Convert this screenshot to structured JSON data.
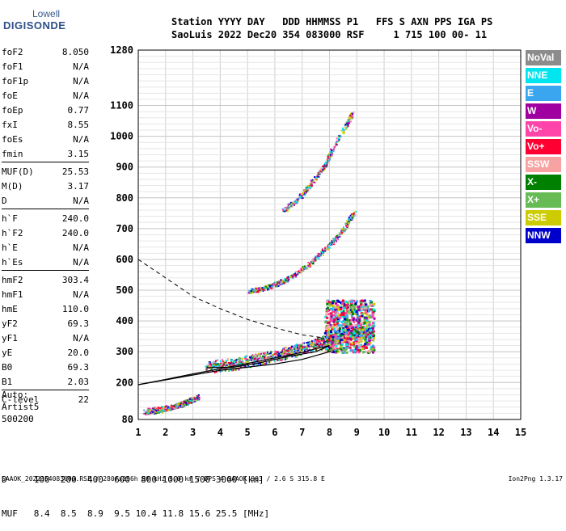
{
  "logo": {
    "line1": "Lowell",
    "line2": "DIGISONDE"
  },
  "header": {
    "row1": "Station YYYY DAY   DDD HHMMSS P1   FFS S AXN PPS IGA PS",
    "row2": "SaoLuis 2022 Dec20 354 083000 RSF     1 715 100 00- 11"
  },
  "params": [
    {
      "name": "foF2",
      "value": "8.050"
    },
    {
      "name": "foF1",
      "value": "N/A"
    },
    {
      "name": "foF1p",
      "value": "N/A"
    },
    {
      "name": "foE",
      "value": "N/A"
    },
    {
      "name": "foEp",
      "value": "0.77"
    },
    {
      "name": "fxI",
      "value": "8.55"
    },
    {
      "name": "foEs",
      "value": "N/A"
    },
    {
      "name": "fmin",
      "value": "3.15"
    },
    {
      "name": "MUF(D)",
      "value": "25.53"
    },
    {
      "name": "M(D)",
      "value": "3.17"
    },
    {
      "name": "D",
      "value": "N/A"
    },
    {
      "name": "h`F",
      "value": "240.0"
    },
    {
      "name": "h`F2",
      "value": "240.0"
    },
    {
      "name": "h`E",
      "value": "N/A"
    },
    {
      "name": "h`Es",
      "value": "N/A"
    },
    {
      "name": "hmF2",
      "value": "303.4"
    },
    {
      "name": "hmF1",
      "value": "N/A"
    },
    {
      "name": "hmE",
      "value": "110.0"
    },
    {
      "name": "yF2",
      "value": "69.3"
    },
    {
      "name": "yF1",
      "value": "N/A"
    },
    {
      "name": "yE",
      "value": "20.0"
    },
    {
      "name": "B0",
      "value": "69.3"
    },
    {
      "name": "B1",
      "value": "2.03"
    },
    {
      "name": "C-level",
      "value": "22"
    }
  ],
  "auto": {
    "line1": "Auto:",
    "line2": "Artist5",
    "line3": "500200"
  },
  "legend": [
    {
      "label": "NoVal",
      "color": "#8c8c8c"
    },
    {
      "label": "NNE",
      "color": "#00e5ee"
    },
    {
      "label": "E",
      "color": "#3aa6f0"
    },
    {
      "label": "W",
      "color": "#a000a0"
    },
    {
      "label": "Vo-",
      "color": "#ff44aa"
    },
    {
      "label": "Vo+",
      "color": "#ff0033"
    },
    {
      "label": "SSW",
      "color": "#f7a3a3"
    },
    {
      "label": "X-",
      "color": "#008000"
    },
    {
      "label": "X+",
      "color": "#66bb55"
    },
    {
      "label": "SSE",
      "color": "#cccc00"
    },
    {
      "label": "NNW",
      "color": "#0000cc"
    }
  ],
  "muf_table": {
    "row1": "D     100  200  400  600  800 1000 1500 3000 [km]",
    "row2": "MUF   8.4  8.5  8.9  9.5 10.4 11.8 15.6 25.5 [MHz]"
  },
  "footer": {
    "left": "SAAOK_2022354083000.RSF / 280fx256h 50 kHz 5.0 km / DPS-4 SAAOK 903 / 2.6 S 315.8 E",
    "right": "Ion2Png 1.3.17"
  },
  "chart_data": {
    "type": "scatter",
    "title": "",
    "xlabel": "",
    "ylabel": "",
    "xlim": [
      1,
      15
    ],
    "ylim": [
      80,
      1280
    ],
    "x_ticks": [
      1,
      2,
      3,
      4,
      5,
      6,
      7,
      8,
      9,
      10,
      11,
      12,
      13,
      14,
      15
    ],
    "y_ticks": [
      80,
      200,
      300,
      400,
      500,
      600,
      700,
      800,
      900,
      1000,
      1100,
      1280
    ],
    "grid": true,
    "series": [
      {
        "color": "#ff0033",
        "trace": [
          [
            3.5,
            252
          ],
          [
            4.5,
            262
          ],
          [
            5.5,
            278
          ],
          [
            6.5,
            300
          ],
          [
            7.5,
            325
          ],
          [
            8.2,
            345
          ],
          [
            8.8,
            360
          ],
          [
            9.4,
            368
          ]
        ]
      },
      {
        "color": "#ff0033",
        "trace": [
          [
            5.0,
            498
          ],
          [
            5.5,
            505
          ],
          [
            6.0,
            520
          ],
          [
            6.5,
            540
          ],
          [
            7.0,
            570
          ],
          [
            7.5,
            605
          ],
          [
            8.0,
            650
          ],
          [
            8.5,
            700
          ],
          [
            8.9,
            755
          ]
        ]
      },
      {
        "color": "#ff0033",
        "trace": [
          [
            6.3,
            760
          ],
          [
            6.8,
            795
          ],
          [
            7.3,
            845
          ],
          [
            7.8,
            905
          ],
          [
            8.2,
            975
          ],
          [
            8.6,
            1040
          ],
          [
            8.8,
            1075
          ]
        ]
      },
      {
        "color": "#0000cc",
        "trace": [
          [
            3.4,
            255
          ],
          [
            4.0,
            258
          ],
          [
            5.0,
            270
          ],
          [
            6.0,
            290
          ],
          [
            7.0,
            315
          ],
          [
            8.0,
            340
          ],
          [
            9.0,
            365
          ],
          [
            9.6,
            375
          ]
        ]
      },
      {
        "color": "#a000a0",
        "trace": [
          [
            1.2,
            105
          ],
          [
            1.8,
            112
          ],
          [
            2.5,
            128
          ],
          [
            3.0,
            148
          ]
        ]
      },
      {
        "color": "#0000cc",
        "trace": [
          [
            1.3,
            110
          ],
          [
            2.0,
            118
          ],
          [
            2.7,
            135
          ],
          [
            3.2,
            155
          ]
        ]
      }
    ],
    "model_profile": [
      [
        1.0,
        193
      ],
      [
        2.0,
        210
      ],
      [
        3.0,
        228
      ],
      [
        4.0,
        245
      ],
      [
        5.0,
        262
      ],
      [
        6.0,
        280
      ],
      [
        7.0,
        298
      ],
      [
        7.5,
        310
      ],
      [
        8.0,
        320
      ],
      [
        7.5,
        300
      ],
      [
        6.5,
        285
      ],
      [
        5.5,
        265
      ],
      [
        4.5,
        250
      ],
      [
        3.5,
        248
      ]
    ],
    "electron_density_dashed": [
      [
        1.0,
        600
      ],
      [
        2.0,
        540
      ],
      [
        3.0,
        480
      ],
      [
        4.0,
        440
      ],
      [
        5.0,
        405
      ],
      [
        6.0,
        378
      ],
      [
        7.0,
        355
      ],
      [
        7.8,
        345
      ]
    ],
    "main_profile": [
      [
        1.0,
        193
      ],
      [
        4.0,
        240
      ],
      [
        6.0,
        260
      ],
      [
        7.0,
        275
      ],
      [
        8.0,
        300
      ],
      [
        8.05,
        303
      ]
    ]
  }
}
